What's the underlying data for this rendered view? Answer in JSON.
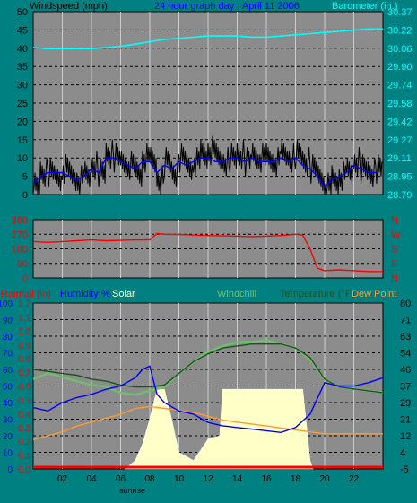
{
  "header": {
    "left_label": "Windspeed (mph)",
    "title": "24 hour graph day : April 11 2006",
    "right_label": "Barometer (in.)"
  },
  "panel3_labels": {
    "rainfall": "Rainfall (in)",
    "humidity": "Humidity %",
    "solar": "Solar",
    "windchill": "Windchill",
    "temperature": "Temperature (°F)",
    "dewpoint": "Dew Point"
  },
  "sunrise_label": "sunrise",
  "colors": {
    "background": "#008080",
    "plot_bg": "#8c8c8c",
    "windspeed": "#000000",
    "windspeed_avg": "#0000ff",
    "barometer": "#00ffff",
    "direction": "#ff0000",
    "humidity": "#0000ff",
    "solar": "#ffffc8",
    "windchill": "#6fbf6f",
    "temperature": "#205020",
    "dewpoint": "#ff9933",
    "rainfall": "#ff0000"
  },
  "chart_data": [
    {
      "type": "line",
      "title": "24 hour graph day : April 11 2006",
      "x_ticks": [
        "02",
        "04",
        "06",
        "08",
        "10",
        "12",
        "14",
        "16",
        "18",
        "20",
        "22"
      ],
      "xlim": [
        0,
        24
      ],
      "y_left_label": "Windspeed (mph)",
      "y_left_ticks": [
        "0",
        "5",
        "10",
        "15",
        "20",
        "25",
        "30",
        "35",
        "40",
        "45",
        "50"
      ],
      "y_left_lim": [
        0,
        50
      ],
      "y_right_label": "Barometer (in.)",
      "y_right_ticks": [
        "28.79",
        "28.95",
        "29.11",
        "29.27",
        "29.42",
        "29.58",
        "29.74",
        "29.90",
        "30.06",
        "30.22",
        "30.37"
      ],
      "y_right_lim": [
        28.79,
        30.37
      ],
      "series": [
        {
          "name": "Barometer",
          "axis": "right",
          "x": [
            0,
            1,
            2,
            3,
            4,
            5,
            6,
            7,
            8,
            9,
            10,
            11,
            12,
            13,
            14,
            15,
            16,
            17,
            18,
            19,
            20,
            21,
            22,
            23,
            24
          ],
          "y": [
            30.06,
            30.05,
            30.05,
            30.05,
            30.05,
            30.06,
            30.07,
            30.09,
            30.11,
            30.13,
            30.14,
            30.15,
            30.16,
            30.16,
            30.16,
            30.15,
            30.15,
            30.16,
            30.17,
            30.18,
            30.19,
            30.2,
            30.21,
            30.22,
            30.22
          ]
        },
        {
          "name": "Windspeed",
          "axis": "left",
          "x": [
            0,
            0.5,
            1,
            1.5,
            2,
            2.5,
            3,
            3.5,
            4,
            4.5,
            5,
            5.5,
            6,
            6.5,
            7,
            7.5,
            8,
            8.5,
            9,
            9.5,
            10,
            10.5,
            11,
            11.5,
            12,
            12.5,
            13,
            13.5,
            14,
            14.5,
            15,
            15.5,
            16,
            16.5,
            17,
            17.5,
            18,
            18.5,
            19,
            19.5,
            20,
            20.5,
            21,
            21.5,
            22,
            22.5,
            23,
            23.5
          ],
          "y": [
            2,
            6,
            6,
            5,
            7,
            5,
            4,
            5,
            8,
            6,
            11,
            10,
            9,
            8,
            6,
            10,
            9,
            4,
            9,
            6,
            10,
            8,
            9,
            11,
            12,
            10,
            9,
            10,
            11,
            9,
            11,
            10,
            10,
            9,
            11,
            10,
            11,
            9,
            7,
            5,
            2,
            4,
            5,
            6,
            9,
            7,
            6,
            7
          ]
        },
        {
          "name": "Windspeed avg",
          "axis": "left",
          "x": [
            0,
            0.5,
            1,
            1.5,
            2,
            2.5,
            3,
            3.5,
            4,
            4.5,
            5,
            5.5,
            6,
            6.5,
            7,
            7.5,
            8,
            8.5,
            9,
            9.5,
            10,
            10.5,
            11,
            11.5,
            12,
            12.5,
            13,
            13.5,
            14,
            14.5,
            15,
            15.5,
            16,
            16.5,
            17,
            17.5,
            18,
            18.5,
            19,
            19.5,
            20,
            20.5,
            21,
            21.5,
            22,
            22.5,
            23,
            23.5
          ],
          "y": [
            3,
            5,
            6,
            6,
            6,
            5,
            4,
            5,
            7,
            6,
            10,
            10,
            9,
            8,
            7,
            9,
            9,
            6,
            8,
            7,
            9,
            8,
            9,
            10,
            10,
            9,
            9,
            10,
            10,
            9,
            10,
            9,
            9,
            9,
            10,
            9,
            10,
            8,
            7,
            5,
            2,
            4,
            5,
            6,
            8,
            7,
            6,
            6
          ]
        }
      ]
    },
    {
      "type": "line",
      "y_left_ticks": [
        "0",
        "90",
        "180",
        "270",
        "360"
      ],
      "y_left_lim": [
        0,
        360
      ],
      "y_right_ticks": [
        "N",
        "W",
        "S",
        "E",
        "N"
      ],
      "series": [
        {
          "name": "Wind direction",
          "axis": "left",
          "x": [
            0,
            1,
            2,
            3,
            4,
            5,
            6,
            7,
            8,
            8.5,
            9,
            10,
            11,
            12,
            13,
            14,
            15,
            16,
            17,
            18,
            18.5,
            19,
            19.5,
            20,
            21,
            22,
            23,
            24
          ],
          "y": [
            225,
            220,
            225,
            230,
            235,
            230,
            232,
            235,
            235,
            275,
            270,
            268,
            265,
            262,
            260,
            258,
            255,
            258,
            262,
            270,
            265,
            180,
            60,
            45,
            50,
            45,
            40,
            40
          ]
        }
      ]
    },
    {
      "type": "line",
      "y_left_ticks": [
        "0.0",
        "0.1",
        "0.2",
        "0.3",
        "0.4",
        "0.5",
        "0.6",
        "0.7",
        "0.8",
        "0.9",
        "1.0",
        "1.1",
        "1.2"
      ],
      "y_left_lim": [
        0,
        1.2
      ],
      "y_left2_ticks": [
        "0",
        "10",
        "20",
        "30",
        "40",
        "50",
        "60",
        "70",
        "80",
        "90",
        "100"
      ],
      "y_left2_lim": [
        0,
        100
      ],
      "y_right_ticks": [
        "-5",
        "4",
        "12",
        "21",
        "29",
        "37",
        "46",
        "54",
        "63",
        "71",
        "80"
      ],
      "y_right_lim": [
        -5,
        80
      ],
      "series": [
        {
          "name": "Humidity %",
          "axis": "left2",
          "x": [
            0,
            1,
            2,
            3,
            4,
            5,
            6,
            7,
            7.5,
            8,
            8.5,
            9,
            10,
            11,
            12,
            13,
            14,
            15,
            16,
            17,
            18,
            19,
            20,
            21,
            22,
            23,
            24
          ],
          "y": [
            37,
            35,
            40,
            43,
            45,
            48,
            50,
            55,
            60,
            62,
            45,
            40,
            35,
            33,
            28,
            26,
            25,
            24,
            23,
            22,
            25,
            33,
            52,
            50,
            50,
            52,
            55
          ]
        },
        {
          "name": "Temperature",
          "axis": "right",
          "x": [
            0,
            1,
            2,
            3,
            4,
            5,
            6,
            7,
            8,
            9,
            10,
            11,
            12,
            13,
            14,
            15,
            16,
            17,
            18,
            19,
            20,
            21,
            22,
            23,
            24
          ],
          "y": [
            46,
            45,
            44,
            43,
            41,
            40,
            38,
            37,
            37,
            38,
            44,
            50,
            54,
            57,
            58,
            59,
            59,
            59,
            57,
            52,
            41,
            37,
            36,
            35,
            34
          ]
        },
        {
          "name": "Windchill",
          "axis": "right",
          "x": [
            0,
            1,
            2,
            3,
            4,
            5,
            6,
            7,
            8,
            9,
            10,
            11,
            12,
            13,
            14,
            15,
            16,
            17,
            18,
            19,
            20,
            21,
            22,
            23,
            24
          ],
          "y": [
            41,
            44,
            42,
            40,
            38,
            37,
            34,
            33,
            35,
            37,
            44,
            50,
            55,
            58,
            60,
            60,
            61,
            59,
            57,
            51,
            41,
            37,
            36,
            35,
            34
          ]
        },
        {
          "name": "Dew Point",
          "axis": "right",
          "x": [
            0,
            1,
            2,
            3,
            4,
            5,
            6,
            7,
            8,
            9,
            10,
            11,
            12,
            13,
            14,
            15,
            16,
            17,
            18,
            19,
            20,
            21,
            22,
            23,
            24
          ],
          "y": [
            10,
            12,
            14,
            17,
            19,
            21,
            23,
            26,
            27,
            26,
            25,
            24,
            22,
            20,
            19,
            18,
            17,
            16,
            15,
            14,
            13,
            13,
            13,
            13,
            13
          ]
        },
        {
          "name": "Solar",
          "axis": "left2",
          "x": [
            6.3,
            7,
            7.5,
            8,
            8.5,
            9,
            9.5,
            10,
            11,
            12,
            12.8,
            13,
            14,
            15,
            16,
            17,
            18,
            18.5,
            19,
            19.2
          ],
          "y": [
            0,
            5,
            15,
            30,
            48,
            48,
            30,
            10,
            5,
            18,
            20,
            48,
            48,
            48,
            48,
            48,
            48,
            48,
            5,
            0
          ]
        },
        {
          "name": "Rainfall",
          "axis": "left",
          "x": [
            0,
            24
          ],
          "y": [
            0,
            0
          ]
        }
      ]
    }
  ]
}
